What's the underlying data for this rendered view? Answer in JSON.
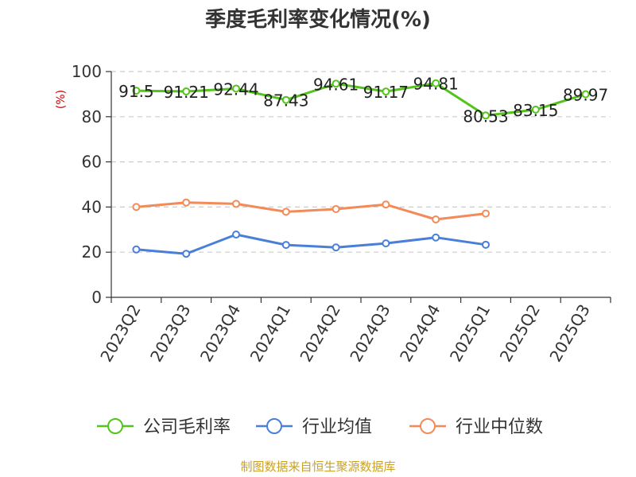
{
  "chart_data": {
    "type": "line",
    "title": "季度毛利率变化情况(%)",
    "unit_label": "(%)",
    "categories": [
      "2023Q2",
      "2023Q3",
      "2023Q4",
      "2024Q1",
      "2024Q2",
      "2024Q3",
      "2024Q4",
      "2025Q1",
      "2025Q2",
      "2025Q3"
    ],
    "ylim": [
      0,
      100
    ],
    "yticks": [
      "0",
      "20",
      "40",
      "60",
      "80",
      "100"
    ],
    "grid": true,
    "legend_position": "bottom",
    "series": [
      {
        "name": "公司毛利率",
        "color": "#52c41a",
        "values": [
          91.5,
          91.21,
          92.44,
          87.43,
          94.61,
          91.17,
          94.81,
          80.53,
          83.15,
          89.97
        ],
        "labels": [
          "91.5",
          "91.21",
          "92.44",
          "87.43",
          "94.61",
          "91.17",
          "94.81",
          "80.53",
          "83.15",
          "89.97"
        ],
        "show_labels": true
      },
      {
        "name": "行业均值",
        "color": "#4a7fd9",
        "values": [
          21.2,
          19.3,
          27.8,
          23.2,
          22.1,
          23.9,
          26.5,
          23.3,
          null,
          null
        ],
        "show_labels": false
      },
      {
        "name": "行业中位数",
        "color": "#f28b57",
        "values": [
          40.0,
          42.0,
          41.4,
          37.9,
          39.1,
          41.1,
          34.5,
          37.1,
          null,
          null
        ],
        "show_labels": false
      }
    ],
    "source": "制图数据来自恒生聚源数据库"
  }
}
